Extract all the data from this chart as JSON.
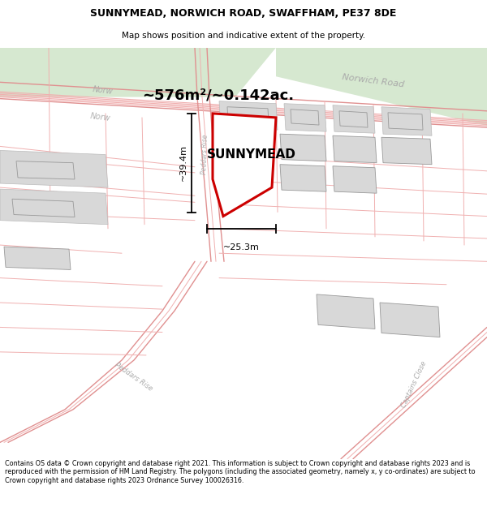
{
  "title_line1": "SUNNYMEAD, NORWICH ROAD, SWAFFHAM, PE37 8DE",
  "title_line2": "Map shows position and indicative extent of the property.",
  "footer_text": "Contains OS data © Crown copyright and database right 2021. This information is subject to Crown copyright and database rights 2023 and is reproduced with the permission of HM Land Registry. The polygons (including the associated geometry, namely x, y co-ordinates) are subject to Crown copyright and database rights 2023 Ordnance Survey 100026316.",
  "area_text": "~576m²/~0.142ac.",
  "property_name": "SUNNYMEAD",
  "dim_width": "~25.3m",
  "dim_height": "~39.4m",
  "bg_color": "#ffffff",
  "road_green": "#d6e8d0",
  "road_line_color": "#f0b0b0",
  "road_line_color2": "#e09090",
  "property_fill": "#ffffff",
  "property_edge": "#cc0000",
  "bld_fill": "#d8d8d8",
  "bld_edge": "#bbbbbb",
  "road_label_color": "#aaaaaa",
  "title_fontsize": 9,
  "footer_fontsize": 6.0
}
